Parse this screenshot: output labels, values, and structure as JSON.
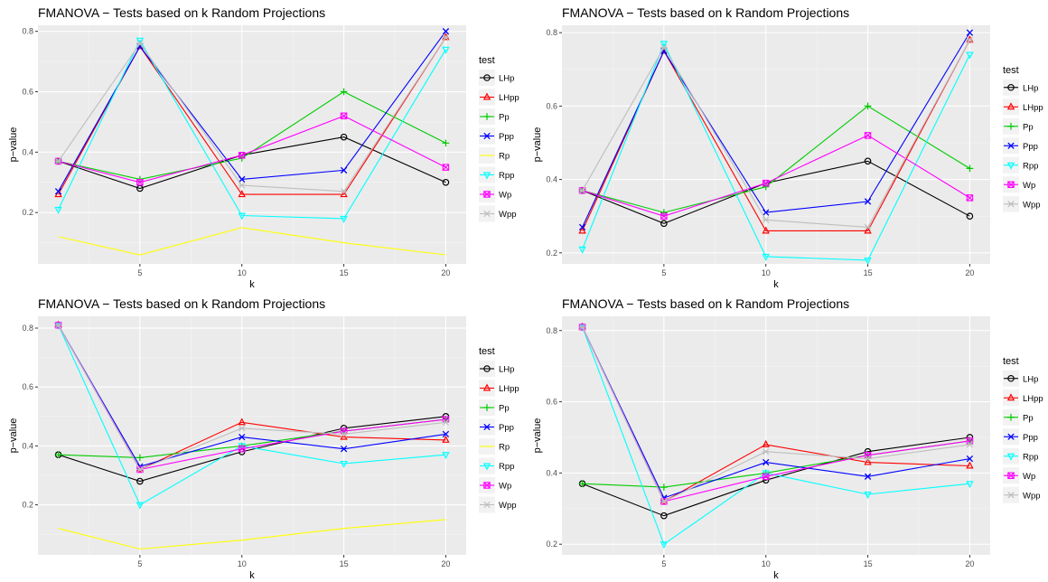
{
  "chart_data": [
    {
      "type": "line",
      "title": "FMANOVA − Tests based on k Random Projections",
      "xlabel": "k",
      "ylabel": "p−value",
      "xlim": [
        0,
        21
      ],
      "ylim": [
        0.03,
        0.82
      ],
      "xticks": [
        5,
        10,
        15,
        20
      ],
      "yticks": [
        0.2,
        0.4,
        0.6,
        0.8
      ],
      "x": [
        1,
        5,
        10,
        15,
        20
      ],
      "legend_title": "test",
      "legend_position": "right",
      "grid": true,
      "series": [
        {
          "name": "LHp",
          "color": "#000000",
          "marker": "circle",
          "values": [
            0.37,
            0.28,
            0.39,
            0.45,
            0.3
          ]
        },
        {
          "name": "LHpp",
          "color": "#ff0000",
          "marker": "triangle-up",
          "values": [
            0.26,
            0.75,
            0.26,
            0.26,
            0.78
          ]
        },
        {
          "name": "Pp",
          "color": "#00cc00",
          "marker": "plus",
          "values": [
            0.37,
            0.31,
            0.38,
            0.6,
            0.43
          ]
        },
        {
          "name": "Ppp",
          "color": "#0000ff",
          "marker": "cross",
          "values": [
            0.27,
            0.75,
            0.31,
            0.34,
            0.8
          ]
        },
        {
          "name": "Rp",
          "color": "#ffff00",
          "marker": "none",
          "values": [
            0.12,
            0.06,
            0.15,
            0.1,
            0.06
          ]
        },
        {
          "name": "Rpp",
          "color": "#00ffff",
          "marker": "triangle-down",
          "values": [
            0.21,
            0.77,
            0.19,
            0.18,
            0.74
          ]
        },
        {
          "name": "Wp",
          "color": "#ff00ff",
          "marker": "square-x",
          "values": [
            0.37,
            0.3,
            0.39,
            0.52,
            0.35
          ]
        },
        {
          "name": "Wpp",
          "color": "#bebebe",
          "marker": "asterisk",
          "values": [
            0.37,
            0.76,
            0.29,
            0.27,
            0.78
          ]
        }
      ]
    },
    {
      "type": "line",
      "title": "FMANOVA − Tests based on k Random Projections",
      "xlabel": "k",
      "ylabel": "p−value",
      "xlim": [
        0,
        21
      ],
      "ylim": [
        0.17,
        0.82
      ],
      "xticks": [
        5,
        10,
        15,
        20
      ],
      "yticks": [
        0.2,
        0.4,
        0.6,
        0.8
      ],
      "x": [
        1,
        5,
        10,
        15,
        20
      ],
      "legend_title": "test",
      "legend_position": "right",
      "grid": true,
      "series": [
        {
          "name": "LHp",
          "color": "#000000",
          "marker": "circle",
          "values": [
            0.37,
            0.28,
            0.39,
            0.45,
            0.3
          ]
        },
        {
          "name": "LHpp",
          "color": "#ff0000",
          "marker": "triangle-up",
          "values": [
            0.26,
            0.75,
            0.26,
            0.26,
            0.78
          ]
        },
        {
          "name": "Pp",
          "color": "#00cc00",
          "marker": "plus",
          "values": [
            0.37,
            0.31,
            0.38,
            0.6,
            0.43
          ]
        },
        {
          "name": "Ppp",
          "color": "#0000ff",
          "marker": "cross",
          "values": [
            0.27,
            0.75,
            0.31,
            0.34,
            0.8
          ]
        },
        {
          "name": "Rpp",
          "color": "#00ffff",
          "marker": "triangle-down",
          "values": [
            0.21,
            0.77,
            0.19,
            0.18,
            0.74
          ]
        },
        {
          "name": "Wp",
          "color": "#ff00ff",
          "marker": "square-x",
          "values": [
            0.37,
            0.3,
            0.39,
            0.52,
            0.35
          ]
        },
        {
          "name": "Wpp",
          "color": "#bebebe",
          "marker": "asterisk",
          "values": [
            0.37,
            0.76,
            0.29,
            0.27,
            0.78
          ]
        }
      ]
    },
    {
      "type": "line",
      "title": "FMANOVA − Tests based on k Random Projections",
      "xlabel": "k",
      "ylabel": "p−value",
      "xlim": [
        0,
        21
      ],
      "ylim": [
        0.03,
        0.84
      ],
      "xticks": [
        5,
        10,
        15,
        20
      ],
      "yticks": [
        0.2,
        0.4,
        0.6,
        0.8
      ],
      "x": [
        1,
        5,
        10,
        15,
        20
      ],
      "legend_title": "test",
      "legend_position": "right",
      "grid": true,
      "series": [
        {
          "name": "LHp",
          "color": "#000000",
          "marker": "circle",
          "values": [
            0.37,
            0.28,
            0.38,
            0.46,
            0.5
          ]
        },
        {
          "name": "LHpp",
          "color": "#ff0000",
          "marker": "triangle-up",
          "values": [
            0.81,
            0.32,
            0.48,
            0.43,
            0.42
          ]
        },
        {
          "name": "Pp",
          "color": "#00cc00",
          "marker": "plus",
          "values": [
            0.37,
            0.36,
            0.4,
            0.45,
            0.49
          ]
        },
        {
          "name": "Ppp",
          "color": "#0000ff",
          "marker": "cross",
          "values": [
            0.81,
            0.33,
            0.43,
            0.39,
            0.44
          ]
        },
        {
          "name": "Rp",
          "color": "#ffff00",
          "marker": "none",
          "values": [
            0.12,
            0.05,
            0.08,
            0.12,
            0.15
          ]
        },
        {
          "name": "Rpp",
          "color": "#00ffff",
          "marker": "triangle-down",
          "values": [
            0.81,
            0.2,
            0.4,
            0.34,
            0.37
          ]
        },
        {
          "name": "Wp",
          "color": "#ff00ff",
          "marker": "square-x",
          "values": [
            0.81,
            0.32,
            0.39,
            0.45,
            0.49
          ]
        },
        {
          "name": "Wpp",
          "color": "#bebebe",
          "marker": "asterisk",
          "values": [
            0.81,
            0.32,
            0.46,
            0.44,
            0.48
          ]
        }
      ]
    },
    {
      "type": "line",
      "title": "FMANOVA − Tests based on k Random Projections",
      "xlabel": "k",
      "ylabel": "p−value",
      "xlim": [
        0,
        21
      ],
      "ylim": [
        0.17,
        0.84
      ],
      "xticks": [
        5,
        10,
        15,
        20
      ],
      "yticks": [
        0.2,
        0.4,
        0.6,
        0.8
      ],
      "x": [
        1,
        5,
        10,
        15,
        20
      ],
      "legend_title": "test",
      "legend_position": "right",
      "grid": true,
      "series": [
        {
          "name": "LHp",
          "color": "#000000",
          "marker": "circle",
          "values": [
            0.37,
            0.28,
            0.38,
            0.46,
            0.5
          ]
        },
        {
          "name": "LHpp",
          "color": "#ff0000",
          "marker": "triangle-up",
          "values": [
            0.81,
            0.32,
            0.48,
            0.43,
            0.42
          ]
        },
        {
          "name": "Pp",
          "color": "#00cc00",
          "marker": "plus",
          "values": [
            0.37,
            0.36,
            0.4,
            0.45,
            0.49
          ]
        },
        {
          "name": "Ppp",
          "color": "#0000ff",
          "marker": "cross",
          "values": [
            0.81,
            0.33,
            0.43,
            0.39,
            0.44
          ]
        },
        {
          "name": "Rpp",
          "color": "#00ffff",
          "marker": "triangle-down",
          "values": [
            0.81,
            0.2,
            0.4,
            0.34,
            0.37
          ]
        },
        {
          "name": "Wp",
          "color": "#ff00ff",
          "marker": "square-x",
          "values": [
            0.81,
            0.32,
            0.39,
            0.45,
            0.49
          ]
        },
        {
          "name": "Wpp",
          "color": "#bebebe",
          "marker": "asterisk",
          "values": [
            0.81,
            0.32,
            0.46,
            0.44,
            0.48
          ]
        }
      ]
    }
  ]
}
